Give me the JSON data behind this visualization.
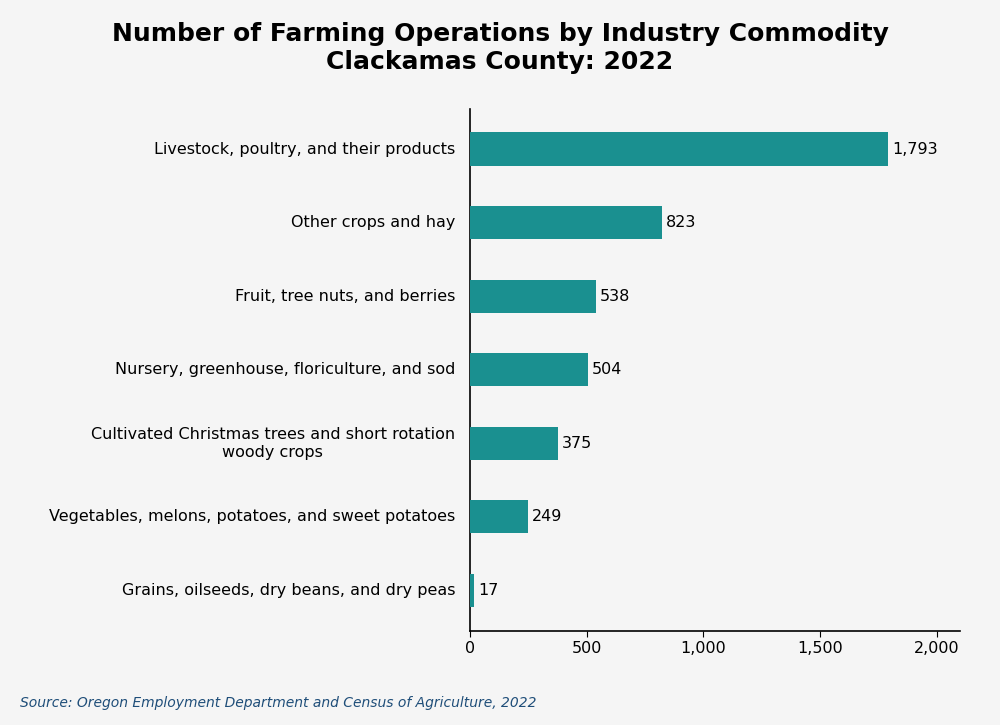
{
  "title": "Number of Farming Operations by Industry Commodity\nClackamas County: 2022",
  "categories": [
    "Grains, oilseeds, dry beans, and dry peas",
    "Vegetables, melons, potatoes, and sweet potatoes",
    "Cultivated Christmas trees and short rotation\nwoody crops",
    "Nursery, greenhouse, floriculture, and sod",
    "Fruit, tree nuts, and berries",
    "Other crops and hay",
    "Livestock, poultry, and their products"
  ],
  "values": [
    17,
    249,
    375,
    504,
    538,
    823,
    1793
  ],
  "bar_color": "#1a9090",
  "background_color": "#f5f5f5",
  "source_text": "Source: Oregon Employment Department and Census of Agriculture, 2022",
  "xlim": [
    0,
    2100
  ],
  "xticks": [
    0,
    500,
    1000,
    1500,
    2000
  ],
  "xtick_labels": [
    "0",
    "500",
    "1,000",
    "1,500",
    "2,000"
  ],
  "title_fontsize": 18,
  "label_fontsize": 11.5,
  "tick_fontsize": 11.5,
  "source_fontsize": 10,
  "source_color": "#1f4e79",
  "bar_height": 0.45
}
